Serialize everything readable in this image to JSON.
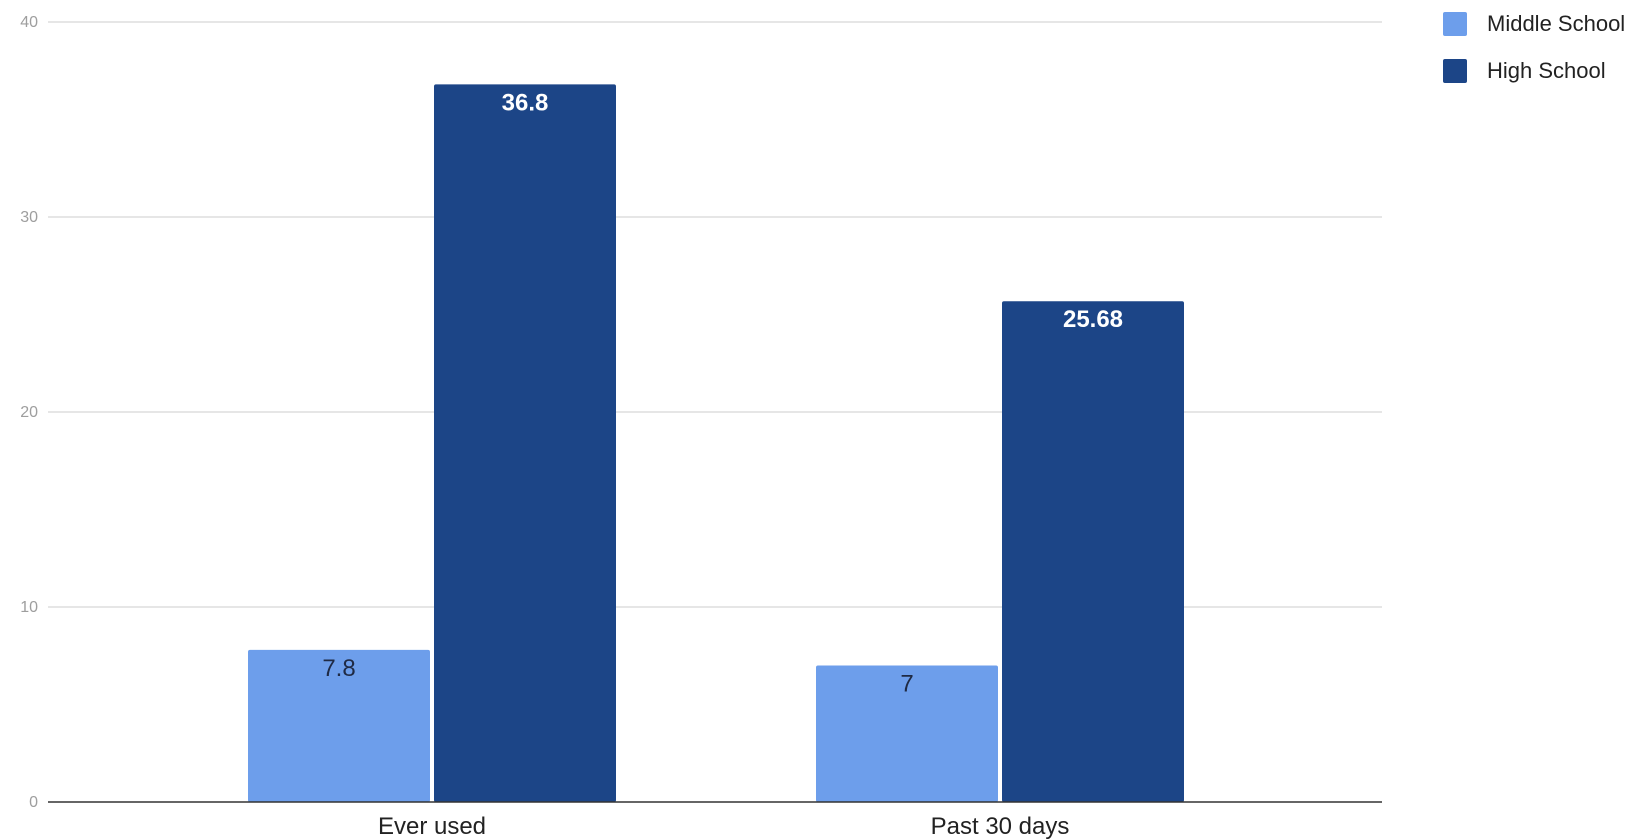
{
  "chart_data": {
    "type": "bar",
    "title": "",
    "xlabel": "",
    "ylabel": "",
    "categories": [
      "Ever used",
      "Past 30 days"
    ],
    "series": [
      {
        "name": "Middle School",
        "values": [
          7.8,
          7
        ],
        "labels": [
          "7.8",
          "7"
        ],
        "color": "#6d9eeb",
        "label_color": "#1f2a44"
      },
      {
        "name": "High School",
        "values": [
          36.8,
          25.68
        ],
        "labels": [
          "36.8",
          "25.68"
        ],
        "color": "#1c4587",
        "label_color": "#ffffff"
      }
    ],
    "ylim": [
      0,
      40
    ],
    "yticks": [
      0,
      10,
      20,
      30,
      40
    ],
    "ytick_labels": [
      "0",
      "10",
      "20",
      "30",
      "40"
    ],
    "grid": true,
    "legend_position": "top-right",
    "colors": {
      "grid": "#cccccc",
      "axis": "#333333",
      "tick_text": "#9e9e9e"
    }
  }
}
